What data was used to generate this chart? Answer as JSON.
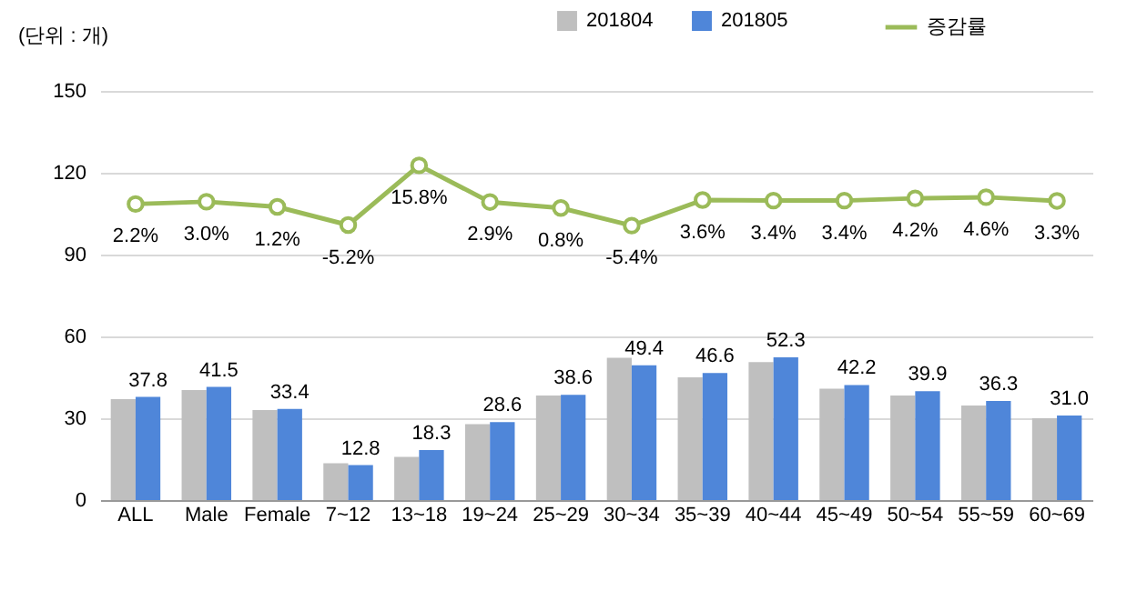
{
  "chart_data": {
    "type": "bar",
    "annotations": [
      "(단위 : 개)"
    ],
    "categories": [
      "ALL",
      "Male",
      "Female",
      "7~12",
      "13~18",
      "19~24",
      "25~29",
      "30~34",
      "35~39",
      "40~44",
      "45~49",
      "50~54",
      "55~59",
      "60~69"
    ],
    "series": [
      {
        "name": "201804",
        "type": "bar",
        "color": "#bfbfbf",
        "values": [
          37.0,
          40.3,
          33.0,
          13.5,
          15.8,
          27.8,
          38.3,
          52.2,
          45.0,
          50.6,
          40.8,
          38.3,
          34.7,
          30.0
        ]
      },
      {
        "name": "201805",
        "type": "bar",
        "color": "#4f86d9",
        "values": [
          37.8,
          41.5,
          33.4,
          12.8,
          18.3,
          28.6,
          38.6,
          49.4,
          46.6,
          52.3,
          42.2,
          39.9,
          36.3,
          31.0
        ],
        "value_labels": [
          "37.8",
          "41.5",
          "33.4",
          "12.8",
          "18.3",
          "28.6",
          "38.6",
          "49.4",
          "46.6",
          "52.3",
          "42.2",
          "39.9",
          "36.3",
          "31.0"
        ]
      },
      {
        "name": "증감률",
        "type": "line",
        "axis": "y2",
        "color": "#9bbb59",
        "values": [
          2.2,
          3.0,
          1.2,
          -5.2,
          15.8,
          2.9,
          0.8,
          -5.4,
          3.6,
          3.4,
          3.4,
          4.2,
          4.6,
          3.3
        ],
        "value_labels": [
          "2.2%",
          "3.0%",
          "1.2%",
          "-5.2%",
          "15.8%",
          "2.9%",
          "0.8%",
          "-5.4%",
          "3.6%",
          "3.4%",
          "3.4%",
          "4.2%",
          "4.6%",
          "3.3%"
        ]
      }
    ],
    "ylim": [
      0,
      150
    ],
    "yticks": [
      0,
      30,
      60,
      90,
      120,
      150
    ],
    "y2lim": [
      -102,
      42
    ],
    "grid": "y",
    "legend": "top right",
    "marker": "circle"
  }
}
